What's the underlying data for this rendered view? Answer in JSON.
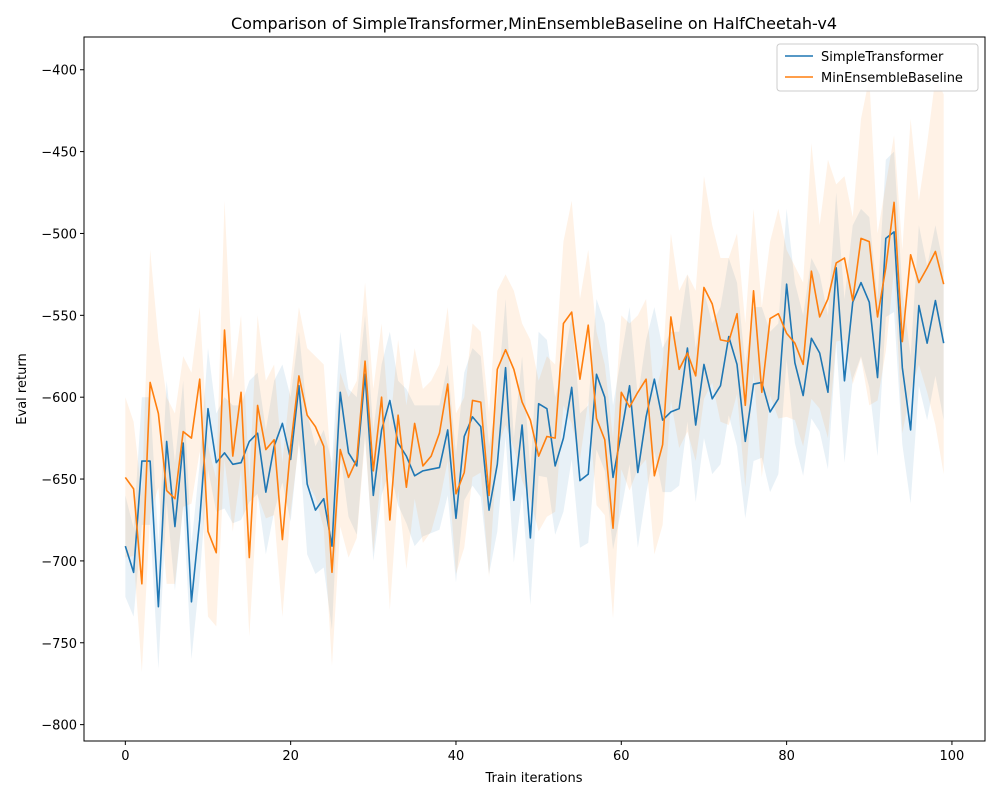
{
  "chart_data": {
    "type": "line",
    "title": "Comparison of SimpleTransformer,MinEnsembleBaseline on HalfCheetah-v4",
    "xlabel": "Train iterations",
    "ylabel": "Eval return",
    "xlim": [
      -5,
      104
    ],
    "ylim": [
      -810,
      -380
    ],
    "x_ticks": [
      0,
      20,
      40,
      60,
      80,
      100
    ],
    "x_tick_labels": [
      "0",
      "20",
      "40",
      "60",
      "80",
      "100"
    ],
    "y_ticks": [
      -800,
      -750,
      -700,
      -650,
      -600,
      -550,
      -500,
      -450,
      -400
    ],
    "y_tick_labels": [
      "−800",
      "−750",
      "−700",
      "−650",
      "−600",
      "−550",
      "−500",
      "−450",
      "−400"
    ],
    "grid": false,
    "legend_position": "top-right",
    "x": [
      0,
      1,
      2,
      3,
      4,
      5,
      6,
      7,
      8,
      9,
      10,
      11,
      12,
      13,
      14,
      15,
      16,
      17,
      18,
      19,
      20,
      21,
      22,
      23,
      24,
      25,
      26,
      27,
      28,
      29,
      30,
      31,
      32,
      33,
      34,
      35,
      36,
      37,
      38,
      39,
      40,
      41,
      42,
      43,
      44,
      45,
      46,
      47,
      48,
      49,
      50,
      51,
      52,
      53,
      54,
      55,
      56,
      57,
      58,
      59,
      60,
      61,
      62,
      63,
      64,
      65,
      66,
      67,
      68,
      69,
      70,
      71,
      72,
      73,
      74,
      75,
      76,
      77,
      78,
      79,
      80,
      81,
      82,
      83,
      84,
      85,
      86,
      87,
      88,
      89,
      90,
      91,
      92,
      93,
      94,
      95,
      96,
      97,
      98,
      99
    ],
    "series": [
      {
        "name": "SimpleTransformer",
        "color": "#1f77b4",
        "values": [
          -691,
          -707,
          -639,
          -639,
          -728,
          -627,
          -679,
          -628,
          -725,
          -675,
          -607,
          -640,
          -634,
          -641,
          -640,
          -627,
          -622,
          -658,
          -630,
          -616,
          -638,
          -593,
          -653,
          -669,
          -662,
          -691,
          -597,
          -634,
          -642,
          -586,
          -660,
          -620,
          -602,
          -628,
          -636,
          -648,
          -645,
          -644,
          -643,
          -620,
          -674,
          -624,
          -612,
          -618,
          -669,
          -641,
          -582,
          -663,
          -617,
          -686,
          -604,
          -607,
          -642,
          -625,
          -594,
          -651,
          -647,
          -586,
          -600,
          -649,
          -622,
          -593,
          -646,
          -612,
          -589,
          -614,
          -609,
          -607,
          -570,
          -617,
          -580,
          -601,
          -593,
          -563,
          -580,
          -627,
          -592,
          -591,
          -609,
          -601,
          -531,
          -579,
          -599,
          -564,
          -573,
          -597,
          -521,
          -590,
          -542,
          -530,
          -542,
          -588,
          -503,
          -499,
          -582,
          -620,
          -544,
          -567,
          -541,
          -567
        ],
        "upper": [
          -660,
          -680,
          -600,
          -600,
          -690,
          -590,
          -640,
          -590,
          -690,
          -640,
          -570,
          -610,
          -600,
          -605,
          -605,
          -590,
          -585,
          -620,
          -590,
          -580,
          -600,
          -560,
          -610,
          -630,
          -620,
          -640,
          -560,
          -595,
          -600,
          -550,
          -620,
          -580,
          -560,
          -590,
          -595,
          -605,
          -605,
          -605,
          -605,
          -580,
          -635,
          -585,
          -570,
          -575,
          -630,
          -600,
          -540,
          -625,
          -575,
          -645,
          -560,
          -565,
          -600,
          -580,
          -550,
          -610,
          -605,
          -540,
          -555,
          -605,
          -575,
          -545,
          -600,
          -565,
          -545,
          -570,
          -560,
          -560,
          -525,
          -570,
          -535,
          -555,
          -545,
          -515,
          -530,
          -580,
          -545,
          -545,
          -560,
          -555,
          -485,
          -530,
          -550,
          -515,
          -525,
          -550,
          -475,
          -540,
          -495,
          -485,
          -490,
          -540,
          -455,
          -450,
          -535,
          -575,
          -495,
          -520,
          -495,
          -520
        ],
        "lower": [
          -722,
          -734,
          -678,
          -678,
          -766,
          -664,
          -718,
          -666,
          -760,
          -710,
          -644,
          -670,
          -668,
          -677,
          -675,
          -664,
          -659,
          -696,
          -670,
          -652,
          -676,
          -626,
          -696,
          -708,
          -704,
          -742,
          -634,
          -673,
          -684,
          -622,
          -700,
          -660,
          -644,
          -666,
          -677,
          -691,
          -685,
          -683,
          -681,
          -660,
          -713,
          -663,
          -654,
          -661,
          -708,
          -682,
          -624,
          -701,
          -659,
          -727,
          -648,
          -649,
          -684,
          -670,
          -638,
          -692,
          -689,
          -632,
          -645,
          -693,
          -669,
          -641,
          -692,
          -659,
          -633,
          -658,
          -658,
          -654,
          -615,
          -664,
          -625,
          -647,
          -641,
          -611,
          -630,
          -674,
          -639,
          -637,
          -658,
          -647,
          -577,
          -628,
          -648,
          -613,
          -621,
          -644,
          -567,
          -640,
          -589,
          -575,
          -594,
          -636,
          -551,
          -548,
          -629,
          -665,
          -593,
          -614,
          -587,
          -614
        ]
      },
      {
        "name": "MinEnsembleBaseline",
        "color": "#ff7f0e",
        "values": [
          -649,
          -656,
          -714,
          -591,
          -610,
          -657,
          -662,
          -621,
          -625,
          -589,
          -682,
          -695,
          -559,
          -636,
          -597,
          -698,
          -605,
          -632,
          -626,
          -687,
          -630,
          -587,
          -611,
          -618,
          -630,
          -707,
          -632,
          -649,
          -638,
          -578,
          -645,
          -600,
          -675,
          -611,
          -655,
          -616,
          -642,
          -636,
          -622,
          -592,
          -659,
          -646,
          -602,
          -603,
          -660,
          -583,
          -571,
          -583,
          -603,
          -614,
          -636,
          -624,
          -625,
          -555,
          -548,
          -589,
          -556,
          -613,
          -626,
          -680,
          -597,
          -606,
          -597,
          -589,
          -648,
          -629,
          -551,
          -583,
          -573,
          -587,
          -533,
          -543,
          -565,
          -566,
          -549,
          -605,
          -535,
          -597,
          -552,
          -549,
          -561,
          -567,
          -580,
          -523,
          -551,
          -540,
          -518,
          -515,
          -541,
          -503,
          -505,
          -551,
          -521,
          -481,
          -566,
          -513,
          -530,
          -521,
          -511,
          -531
        ],
        "upper": [
          -600,
          -615,
          -660,
          -510,
          -565,
          -600,
          -610,
          -575,
          -585,
          -545,
          -630,
          -650,
          -480,
          -590,
          -550,
          -650,
          -550,
          -590,
          -580,
          -640,
          -590,
          -545,
          -570,
          -575,
          -580,
          -650,
          -585,
          -600,
          -590,
          -530,
          -595,
          -555,
          -620,
          -565,
          -605,
          -570,
          -595,
          -590,
          -580,
          -545,
          -610,
          -600,
          -555,
          -560,
          -610,
          -535,
          -525,
          -535,
          -555,
          -565,
          -590,
          -575,
          -580,
          -505,
          -480,
          -540,
          -510,
          -560,
          -580,
          -625,
          -550,
          -555,
          -550,
          -540,
          -600,
          -580,
          -500,
          -535,
          -525,
          -535,
          -465,
          -495,
          -515,
          -515,
          -500,
          -555,
          -485,
          -545,
          -505,
          -485,
          -510,
          -520,
          -530,
          -445,
          -495,
          -455,
          -470,
          -465,
          -490,
          -430,
          -405,
          -500,
          -470,
          -440,
          -510,
          -430,
          -480,
          -445,
          -405,
          -415
        ],
        "lower": [
          -698,
          -697,
          -768,
          -672,
          -655,
          -714,
          -714,
          -667,
          -665,
          -633,
          -734,
          -740,
          -638,
          -682,
          -644,
          -746,
          -660,
          -674,
          -672,
          -734,
          -670,
          -629,
          -652,
          -661,
          -680,
          -764,
          -679,
          -698,
          -686,
          -626,
          -695,
          -645,
          -730,
          -657,
          -705,
          -662,
          -689,
          -682,
          -664,
          -639,
          -708,
          -692,
          -649,
          -646,
          -710,
          -631,
          -617,
          -631,
          -651,
          -663,
          -682,
          -673,
          -670,
          -605,
          -616,
          -638,
          -602,
          -666,
          -672,
          -735,
          -644,
          -657,
          -644,
          -638,
          -696,
          -678,
          -602,
          -631,
          -621,
          -639,
          -601,
          -591,
          -615,
          -617,
          -598,
          -655,
          -585,
          -649,
          -599,
          -613,
          -612,
          -614,
          -630,
          -601,
          -607,
          -625,
          -566,
          -565,
          -592,
          -576,
          -605,
          -602,
          -572,
          -522,
          -622,
          -596,
          -580,
          -597,
          -617,
          -647
        ]
      }
    ]
  }
}
